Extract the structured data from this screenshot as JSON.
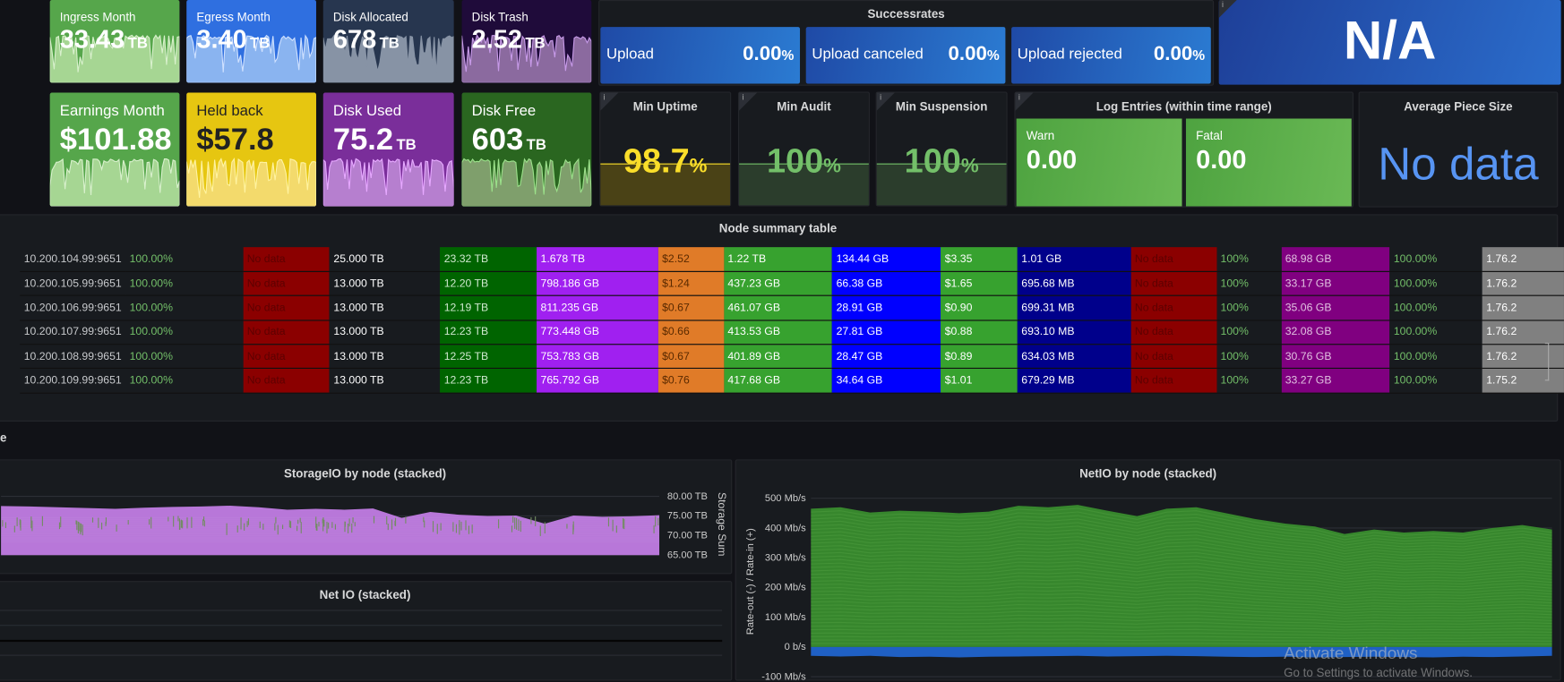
{
  "stats_row1": [
    {
      "title": "Ingress Month",
      "value": "33.43",
      "unit": "TB",
      "bg": "#56a64b",
      "fill": "#a6d693",
      "line": "#d8f0cc"
    },
    {
      "title": "Egress Month",
      "value": "3.40",
      "unit": "TB",
      "bg": "#2f6fe0",
      "fill": "#8ab4f0",
      "line": "#cfe1ff"
    },
    {
      "title": "Disk Allocated",
      "value": "678",
      "unit": "TB",
      "bg": "#27364f",
      "fill": "#8793a5",
      "line": "#8793a5"
    },
    {
      "title": "Disk Trash",
      "value": "2.52",
      "unit": "TB",
      "bg": "#1f0b3a",
      "fill": "#8b6a9f",
      "line": "#c79ae8"
    }
  ],
  "stats_row2": [
    {
      "title": "Earnings Month",
      "value": "$101.88",
      "unit": "",
      "bg": "#56a64b",
      "fill": "#a6d693",
      "line": "#d8f0cc",
      "dark": false
    },
    {
      "title": "Held back",
      "value": "$57.8",
      "unit": "",
      "bg": "#e6c611",
      "fill": "#f3da6c",
      "line": "#fff3a0",
      "dark": true
    },
    {
      "title": "Disk Used",
      "value": "75.2",
      "unit": "TB",
      "bg": "#7a2e9a",
      "fill": "#b67fcf",
      "line": "#e6a8ff",
      "dark": false
    },
    {
      "title": "Disk Free",
      "value": "603",
      "unit": "TB",
      "bg": "#2a6620",
      "fill": "#7f9f6c",
      "line": "#9be08a",
      "dark": false
    }
  ],
  "successrates": {
    "title": "Successrates",
    "items": [
      {
        "label": "Upload",
        "value": "0.00",
        "unit": "%"
      },
      {
        "label": "Upload canceled",
        "value": "0.00",
        "unit": "%"
      },
      {
        "label": "Upload rejected",
        "value": "0.00",
        "unit": "%"
      }
    ]
  },
  "na_panel": {
    "value": "N/A"
  },
  "gauges": [
    {
      "title": "Min Uptime",
      "value": "98.7",
      "unit": "%",
      "percent": 98.7,
      "color": "#fade2a",
      "fill": "#4a4216"
    },
    {
      "title": "Min Audit",
      "value": "100",
      "unit": "%",
      "percent": 100,
      "color": "#73bf69",
      "fill": "#2b3d2c"
    },
    {
      "title": "Min Suspension",
      "value": "100",
      "unit": "%",
      "percent": 100,
      "color": "#73bf69",
      "fill": "#2b3d2c"
    }
  ],
  "log_entries": {
    "title": "Log Entries (within time range)",
    "items": [
      {
        "label": "Warn",
        "value": "0.00"
      },
      {
        "label": "Fatal",
        "value": "0.00"
      }
    ]
  },
  "avg_piece": {
    "title": "Average Piece Size",
    "value": "No data"
  },
  "node_table": {
    "title": "Node summary table",
    "column_styles": [
      {
        "bg": "",
        "fg": "#c7c9cc"
      },
      {
        "bg": "",
        "fg": "#73bf69"
      },
      {
        "bg": "#8b0000",
        "fg": "#5c0000"
      },
      {
        "bg": "",
        "fg": "#ffffff"
      },
      {
        "bg": "#006400",
        "fg": "#cfe8cf"
      },
      {
        "bg": "#a020f0",
        "fg": "#ffffff"
      },
      {
        "bg": "#e07b28",
        "fg": "#5a2a00"
      },
      {
        "bg": "#37a22f",
        "fg": "#ffffff"
      },
      {
        "bg": "#0000ff",
        "fg": "#ffffff"
      },
      {
        "bg": "#37a22f",
        "fg": "#ffffff"
      },
      {
        "bg": "#00008b",
        "fg": "#ffffff"
      },
      {
        "bg": "#8b0000",
        "fg": "#5c0000"
      },
      {
        "bg": "",
        "fg": "#73bf69"
      },
      {
        "bg": "#800080",
        "fg": "#e0c0e0"
      },
      {
        "bg": "",
        "fg": "#73bf69"
      },
      {
        "bg": "#808080",
        "fg": "#ffffff"
      }
    ],
    "rows": [
      [
        "10.200.104.99:9651",
        "100.00%",
        "No data",
        "25.000 TB",
        "23.32 TB",
        "1.678 TB",
        "$2.52",
        "1.22 TB",
        "134.44 GB",
        "$3.35",
        "1.01 GB",
        "No data",
        "100%",
        "68.98 GB",
        "100.00%",
        "1.76.2"
      ],
      [
        "10.200.105.99:9651",
        "100.00%",
        "No data",
        "13.000 TB",
        "12.20 TB",
        "798.186 GB",
        "$1.24",
        "437.23 GB",
        "66.38 GB",
        "$1.65",
        "695.68 MB",
        "No data",
        "100%",
        "33.17 GB",
        "100.00%",
        "1.76.2"
      ],
      [
        "10.200.106.99:9651",
        "100.00%",
        "No data",
        "13.000 TB",
        "12.19 TB",
        "811.235 GB",
        "$0.67",
        "461.07 GB",
        "28.91 GB",
        "$0.90",
        "699.31 MB",
        "No data",
        "100%",
        "35.06 GB",
        "100.00%",
        "1.76.2"
      ],
      [
        "10.200.107.99:9651",
        "100.00%",
        "No data",
        "13.000 TB",
        "12.23 TB",
        "773.448 GB",
        "$0.66",
        "413.53 GB",
        "27.81 GB",
        "$0.88",
        "693.10 MB",
        "No data",
        "100%",
        "32.08 GB",
        "100.00%",
        "1.76.2"
      ],
      [
        "10.200.108.99:9651",
        "100.00%",
        "No data",
        "13.000 TB",
        "12.25 TB",
        "753.783 GB",
        "$0.67",
        "401.89 GB",
        "28.47 GB",
        "$0.89",
        "634.03 MB",
        "No data",
        "100%",
        "30.76 GB",
        "100.00%",
        "1.76.2"
      ],
      [
        "10.200.109.99:9651",
        "100.00%",
        "No data",
        "13.000 TB",
        "12.23 TB",
        "765.792 GB",
        "$0.76",
        "417.68 GB",
        "34.64 GB",
        "$1.01",
        "679.29 MB",
        "No data",
        "100%",
        "33.27 GB",
        "100.00%",
        "1.75.2"
      ]
    ]
  },
  "row_fragment": "e",
  "net_io": {
    "title": "Net IO (stacked)"
  },
  "chart_data": [
    {
      "type": "area",
      "title": "StorageIO by node (stacked)",
      "ylabel": "Storage Sum",
      "yticks": [
        "80.00 TB",
        "75.00 TB",
        "70.00 TB",
        "65.00 TB"
      ],
      "ylim": [
        65,
        80
      ],
      "stacked": true,
      "color": "#b877d9",
      "values": [
        77.5,
        77.4,
        77.2,
        77.0,
        76.8,
        77.1,
        77.3,
        77.4,
        77.6,
        77.2,
        76.6,
        76.8,
        76.6,
        76.9,
        74.5,
        76.0,
        75.3,
        75.0,
        75.1,
        73.0,
        75.1,
        74.8,
        74.9,
        75.2
      ]
    },
    {
      "type": "area",
      "title": "NetIO by node (stacked)",
      "ylabel": "Rate-out (-) / Rate-in (+)",
      "yticks": [
        "500 Mb/s",
        "400 Mb/s",
        "300 Mb/s",
        "200 Mb/s",
        "100 Mb/s",
        "0 b/s",
        "-100 Mb/s"
      ],
      "ylim": [
        -100,
        500
      ],
      "stacked": true,
      "series": [
        {
          "color": "#37872d",
          "values": [
            465,
            470,
            452,
            458,
            455,
            450,
            455,
            475,
            470,
            478,
            458,
            440,
            465,
            470,
            450,
            430,
            415,
            405,
            380,
            395,
            385,
            390,
            385,
            400,
            410,
            395
          ]
        },
        {
          "color": "#1f60c4",
          "values": [
            -30,
            -32,
            -30,
            -34,
            -33,
            -35,
            -33,
            -32,
            -31,
            -30,
            -32,
            -31,
            -30,
            -31,
            -33,
            -34,
            -33,
            -35,
            -34,
            -33,
            -34,
            -35,
            -33,
            -34,
            -32,
            -30
          ]
        }
      ]
    }
  ],
  "watermark": {
    "line1": "Activate Windows",
    "line2": "Go to Settings to activate Windows."
  }
}
